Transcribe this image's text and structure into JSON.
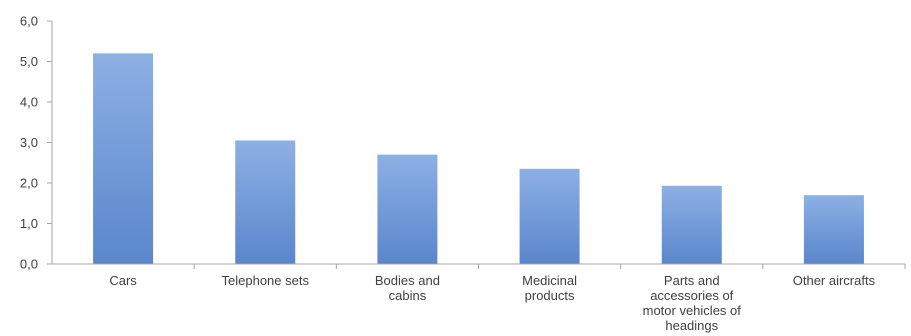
{
  "chart_data": {
    "type": "bar",
    "categories": [
      [
        "Cars"
      ],
      [
        "Telephone sets"
      ],
      [
        "Bodies and",
        "cabins"
      ],
      [
        "Medicinal",
        "products"
      ],
      [
        "Parts and",
        "accessories of",
        "motor vehicles of",
        "headings"
      ],
      [
        "Other aircrafts"
      ]
    ],
    "values": [
      5.2,
      3.05,
      2.7,
      2.35,
      1.93,
      1.7
    ],
    "ylim": [
      0,
      6
    ],
    "yticks": [
      "0,0",
      "1,0",
      "2,0",
      "3,0",
      "4,0",
      "5,0",
      "6,0"
    ],
    "grid": false,
    "bar_color": "#6f9ad8",
    "bar_color_top": "#8db0e4",
    "bar_color_bottom": "#5a86cc",
    "axis_color": "#a6a6a6"
  }
}
